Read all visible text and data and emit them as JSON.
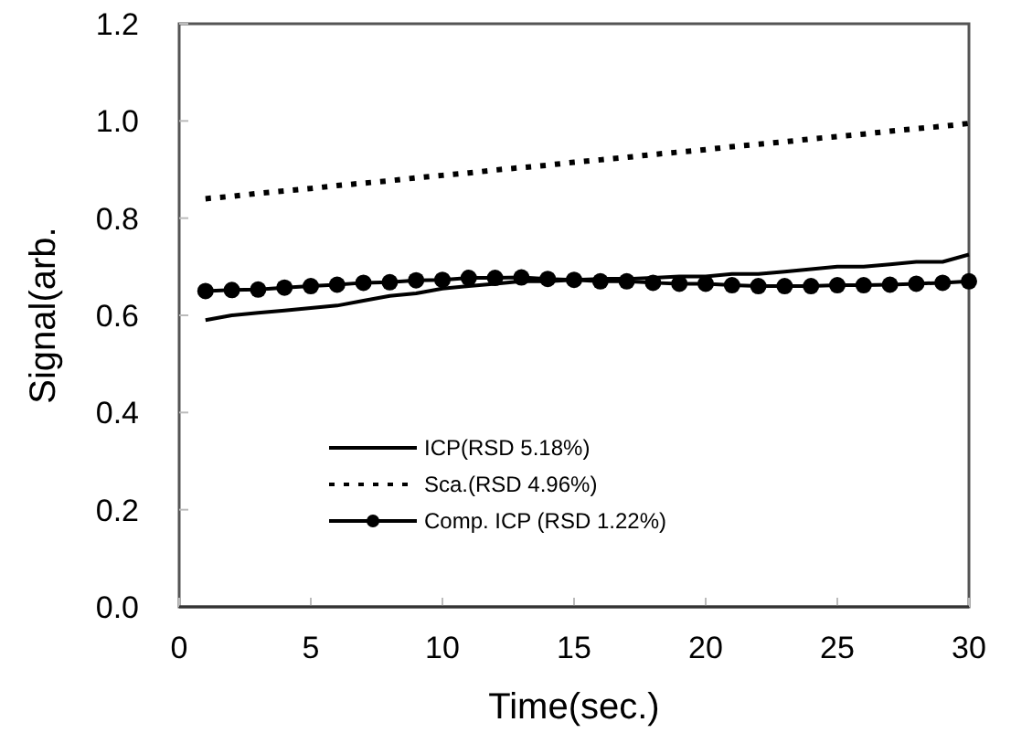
{
  "chart_data": {
    "type": "line",
    "xlabel": "Time(sec.)",
    "ylabel": "Signal(arb.",
    "x": [
      1,
      2,
      3,
      4,
      5,
      6,
      7,
      8,
      9,
      10,
      11,
      12,
      13,
      14,
      15,
      16,
      17,
      18,
      19,
      20,
      21,
      22,
      23,
      24,
      25,
      26,
      27,
      28,
      29,
      30
    ],
    "xlim": [
      0,
      30
    ],
    "xticks": [
      0,
      5,
      10,
      15,
      20,
      25,
      30
    ],
    "ylim": [
      0,
      1.2
    ],
    "yticks": [
      {
        "value": 0,
        "label": "0.0"
      },
      {
        "value": 0.2,
        "label": "0.2"
      },
      {
        "value": 0.4,
        "label": "0.4"
      },
      {
        "value": 0.6,
        "label": "0.6"
      },
      {
        "value": 0.8,
        "label": "0.8"
      },
      {
        "value": 1,
        "label": "1.0"
      },
      {
        "value": 1.2,
        "label": "1.2"
      }
    ],
    "grid": false,
    "legend": "bottom left",
    "series": [
      {
        "name": "ICP(RSD 5.18%)",
        "color": "#000000",
        "line_style": "solid",
        "marker": "none",
        "values": [
          0.59,
          0.6,
          0.605,
          0.61,
          0.615,
          0.62,
          0.63,
          0.64,
          0.645,
          0.655,
          0.66,
          0.665,
          0.67,
          0.67,
          0.673,
          0.675,
          0.675,
          0.677,
          0.68,
          0.68,
          0.685,
          0.685,
          0.69,
          0.695,
          0.7,
          0.7,
          0.705,
          0.71,
          0.71,
          0.725
        ]
      },
      {
        "name": "Sca.(RSD 4.96%)",
        "color": "#000000",
        "line_style": "dotted",
        "marker": "none",
        "values": [
          0.84,
          0.845,
          0.851,
          0.856,
          0.861,
          0.867,
          0.872,
          0.877,
          0.883,
          0.888,
          0.893,
          0.899,
          0.904,
          0.909,
          0.915,
          0.92,
          0.925,
          0.931,
          0.936,
          0.941,
          0.947,
          0.952,
          0.957,
          0.963,
          0.968,
          0.973,
          0.979,
          0.984,
          0.989,
          0.995
        ]
      },
      {
        "name": "Comp. ICP (RSD 1.22%)",
        "color": "#000000",
        "line_style": "solid",
        "marker": "circle",
        "values": [
          0.65,
          0.652,
          0.653,
          0.657,
          0.66,
          0.663,
          0.667,
          0.668,
          0.672,
          0.673,
          0.677,
          0.677,
          0.678,
          0.675,
          0.673,
          0.67,
          0.67,
          0.667,
          0.665,
          0.665,
          0.662,
          0.66,
          0.66,
          0.66,
          0.662,
          0.662,
          0.663,
          0.665,
          0.667,
          0.67
        ]
      }
    ]
  }
}
